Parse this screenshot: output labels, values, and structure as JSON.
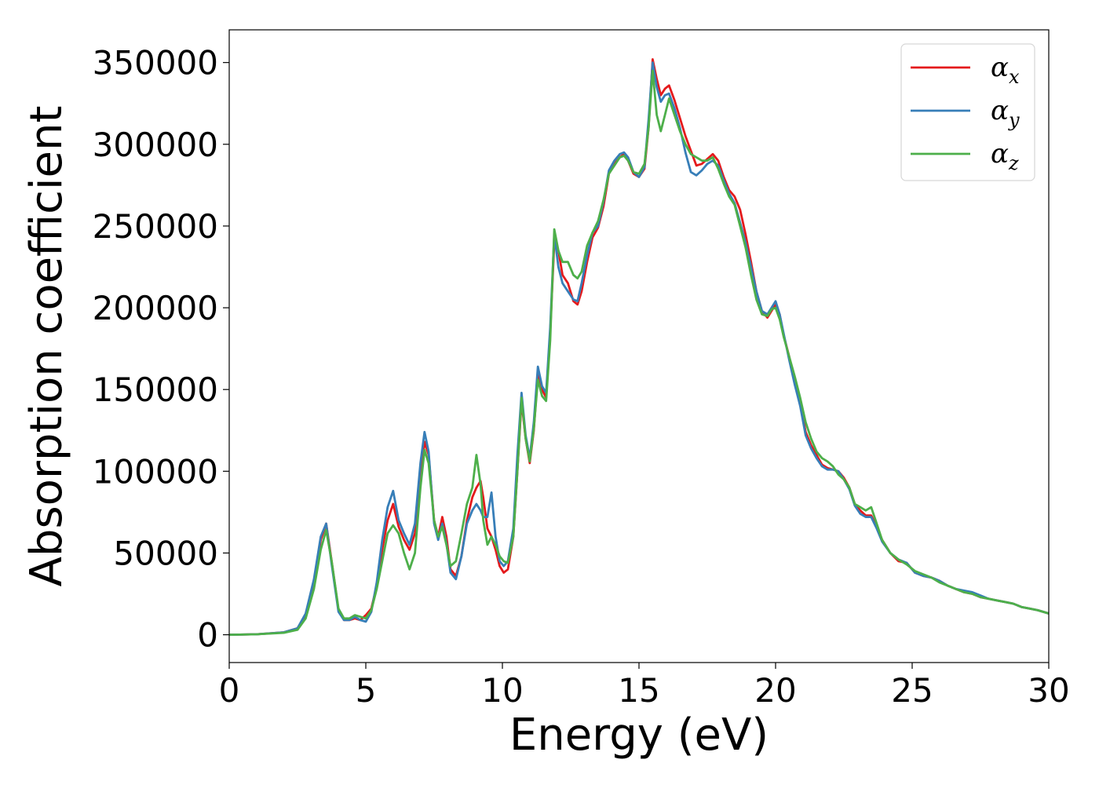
{
  "chart_data": {
    "type": "line",
    "xlabel": "Energy (eV)",
    "ylabel": "Absorption coefficient",
    "xlim": [
      0,
      30
    ],
    "ylim": [
      -17000,
      370000
    ],
    "xticks": [
      0,
      5,
      10,
      15,
      20,
      25,
      30
    ],
    "yticks": [
      0,
      50000,
      100000,
      150000,
      200000,
      250000,
      300000,
      350000
    ],
    "xtick_labels": [
      "0",
      "5",
      "10",
      "15",
      "20",
      "25",
      "30"
    ],
    "ytick_labels": [
      "0",
      "50000",
      "100000",
      "150000",
      "200000",
      "250000",
      "300000",
      "350000"
    ],
    "grid": false,
    "legend_position": "top-right",
    "series": [
      {
        "name": "α_x",
        "label_main": "α",
        "label_sub": "x",
        "color": "#e41a1c",
        "x": [
          0,
          1,
          2,
          2.5,
          2.8,
          3.1,
          3.35,
          3.55,
          3.75,
          4.0,
          4.2,
          4.4,
          4.6,
          4.8,
          5.0,
          5.2,
          5.4,
          5.6,
          5.8,
          6.0,
          6.2,
          6.4,
          6.6,
          6.8,
          7.0,
          7.15,
          7.3,
          7.5,
          7.65,
          7.8,
          7.95,
          8.1,
          8.3,
          8.5,
          8.7,
          8.9,
          9.05,
          9.2,
          9.3,
          9.45,
          9.6,
          9.75,
          9.9,
          10.05,
          10.2,
          10.4,
          10.55,
          10.7,
          10.85,
          11.0,
          11.15,
          11.3,
          11.45,
          11.6,
          11.75,
          11.9,
          12.05,
          12.2,
          12.4,
          12.6,
          12.75,
          12.9,
          13.1,
          13.3,
          13.5,
          13.7,
          13.9,
          14.1,
          14.3,
          14.45,
          14.6,
          14.8,
          15.0,
          15.2,
          15.35,
          15.5,
          15.65,
          15.8,
          15.95,
          16.1,
          16.3,
          16.5,
          16.7,
          16.9,
          17.1,
          17.3,
          17.5,
          17.7,
          17.9,
          18.1,
          18.3,
          18.5,
          18.7,
          18.9,
          19.1,
          19.3,
          19.5,
          19.7,
          19.85,
          20.0,
          20.15,
          20.3,
          20.5,
          20.7,
          20.9,
          21.1,
          21.3,
          21.5,
          21.7,
          21.9,
          22.1,
          22.3,
          22.5,
          22.7,
          22.9,
          23.1,
          23.3,
          23.5,
          23.7,
          23.9,
          24.2,
          24.5,
          24.8,
          25.1,
          25.4,
          25.7,
          26.0,
          26.3,
          26.6,
          26.9,
          27.2,
          27.5,
          27.8,
          28.1,
          28.4,
          28.7,
          29.0,
          29.3,
          29.6,
          30.0
        ],
        "y": [
          0,
          300,
          1500,
          4000,
          12000,
          32000,
          58000,
          68000,
          45000,
          15000,
          9000,
          9000,
          10000,
          9000,
          12000,
          16000,
          30000,
          52000,
          70000,
          80000,
          66000,
          58000,
          52000,
          62000,
          95000,
          118000,
          110000,
          70000,
          60000,
          72000,
          60000,
          40000,
          36000,
          48000,
          70000,
          84000,
          90000,
          94000,
          84000,
          65000,
          60000,
          52000,
          42000,
          38000,
          40000,
          60000,
          100000,
          143000,
          120000,
          105000,
          125000,
          160000,
          150000,
          145000,
          185000,
          240000,
          235000,
          220000,
          215000,
          204000,
          202000,
          210000,
          228000,
          243000,
          249000,
          262000,
          282000,
          288000,
          292000,
          294000,
          290000,
          282000,
          280000,
          285000,
          310000,
          352000,
          340000,
          330000,
          334000,
          336000,
          327000,
          316000,
          305000,
          296000,
          287000,
          288000,
          291000,
          294000,
          290000,
          280000,
          272000,
          268000,
          260000,
          245000,
          228000,
          210000,
          198000,
          194000,
          198000,
          202000,
          196000,
          183000,
          170000,
          155000,
          142000,
          124000,
          116000,
          110000,
          104000,
          102000,
          101000,
          100000,
          96000,
          90000,
          80000,
          76000,
          73000,
          73000,
          66000,
          58000,
          50000,
          45000,
          44000,
          38000,
          36000,
          35000,
          33000,
          30000,
          28000,
          26000,
          25000,
          23000,
          22000,
          21000,
          20000,
          19000,
          17000,
          16000,
          15000,
          13000
        ]
      },
      {
        "name": "α_y",
        "label_main": "α",
        "label_sub": "y",
        "color": "#377eb8",
        "x": [
          0,
          1,
          2,
          2.5,
          2.8,
          3.1,
          3.35,
          3.55,
          3.75,
          4.0,
          4.2,
          4.4,
          4.6,
          4.8,
          5.0,
          5.2,
          5.4,
          5.6,
          5.8,
          6.0,
          6.2,
          6.4,
          6.6,
          6.8,
          7.0,
          7.15,
          7.3,
          7.5,
          7.65,
          7.8,
          7.95,
          8.1,
          8.3,
          8.5,
          8.7,
          8.9,
          9.05,
          9.2,
          9.3,
          9.45,
          9.6,
          9.75,
          9.9,
          10.05,
          10.2,
          10.4,
          10.55,
          10.7,
          10.85,
          11.0,
          11.15,
          11.3,
          11.45,
          11.6,
          11.75,
          11.9,
          12.05,
          12.2,
          12.4,
          12.6,
          12.75,
          12.9,
          13.1,
          13.3,
          13.5,
          13.7,
          13.9,
          14.1,
          14.3,
          14.45,
          14.6,
          14.8,
          15.0,
          15.2,
          15.35,
          15.5,
          15.65,
          15.8,
          15.95,
          16.1,
          16.3,
          16.5,
          16.7,
          16.9,
          17.1,
          17.3,
          17.5,
          17.7,
          17.9,
          18.1,
          18.3,
          18.5,
          18.7,
          18.9,
          19.1,
          19.3,
          19.5,
          19.7,
          19.85,
          20.0,
          20.15,
          20.3,
          20.5,
          20.7,
          20.9,
          21.1,
          21.3,
          21.5,
          21.7,
          21.9,
          22.1,
          22.3,
          22.5,
          22.7,
          22.9,
          23.1,
          23.3,
          23.5,
          23.7,
          23.9,
          24.2,
          24.5,
          24.8,
          25.1,
          25.4,
          25.7,
          26.0,
          26.3,
          26.6,
          26.9,
          27.2,
          27.5,
          27.8,
          28.1,
          28.4,
          28.7,
          29.0,
          29.3,
          29.6,
          30.0
        ],
        "y": [
          0,
          300,
          1500,
          4000,
          13000,
          34000,
          60000,
          68000,
          43000,
          14000,
          9000,
          9000,
          11000,
          9000,
          8000,
          14000,
          32000,
          58000,
          78000,
          88000,
          70000,
          62000,
          55000,
          68000,
          105000,
          124000,
          112000,
          68000,
          58000,
          68000,
          56000,
          38000,
          34000,
          48000,
          68000,
          76000,
          80000,
          76000,
          72000,
          72000,
          87000,
          60000,
          45000,
          42000,
          45000,
          65000,
          110000,
          148000,
          122000,
          108000,
          130000,
          164000,
          152000,
          148000,
          188000,
          245000,
          225000,
          215000,
          210000,
          205000,
          204000,
          215000,
          232000,
          246000,
          250000,
          265000,
          284000,
          290000,
          294000,
          295000,
          292000,
          283000,
          280000,
          286000,
          315000,
          350000,
          335000,
          326000,
          330000,
          331000,
          322000,
          310000,
          295000,
          283000,
          281000,
          284000,
          288000,
          290000,
          287000,
          278000,
          270000,
          264000,
          252000,
          240000,
          225000,
          210000,
          198000,
          196000,
          200000,
          204000,
          196000,
          184000,
          168000,
          153000,
          140000,
          122000,
          114000,
          108000,
          103000,
          101000,
          101000,
          100000,
          95000,
          89000,
          79000,
          74000,
          72000,
          72000,
          65000,
          57000,
          50000,
          46000,
          44000,
          38000,
          36000,
          35000,
          33000,
          30000,
          28000,
          27000,
          26000,
          24000,
          22000,
          21000,
          20000,
          19000,
          17000,
          16000,
          15000,
          13000
        ]
      },
      {
        "name": "α_z",
        "label_main": "α",
        "label_sub": "z",
        "color": "#4daf4a",
        "x": [
          0,
          1,
          2,
          2.5,
          2.8,
          3.1,
          3.35,
          3.55,
          3.75,
          4.0,
          4.2,
          4.4,
          4.6,
          4.8,
          5.0,
          5.2,
          5.4,
          5.6,
          5.8,
          6.0,
          6.2,
          6.4,
          6.6,
          6.8,
          7.0,
          7.15,
          7.3,
          7.5,
          7.65,
          7.8,
          7.95,
          8.1,
          8.3,
          8.5,
          8.7,
          8.9,
          9.05,
          9.2,
          9.3,
          9.45,
          9.6,
          9.75,
          9.9,
          10.05,
          10.2,
          10.4,
          10.55,
          10.7,
          10.85,
          11.0,
          11.15,
          11.3,
          11.45,
          11.6,
          11.75,
          11.9,
          12.05,
          12.2,
          12.4,
          12.6,
          12.75,
          12.9,
          13.1,
          13.3,
          13.5,
          13.7,
          13.9,
          14.1,
          14.3,
          14.45,
          14.6,
          14.8,
          15.0,
          15.2,
          15.35,
          15.5,
          15.65,
          15.8,
          15.95,
          16.1,
          16.3,
          16.5,
          16.7,
          16.9,
          17.1,
          17.3,
          17.5,
          17.7,
          17.9,
          18.1,
          18.3,
          18.5,
          18.7,
          18.9,
          19.1,
          19.3,
          19.5,
          19.7,
          19.85,
          20.0,
          20.15,
          20.3,
          20.5,
          20.7,
          20.9,
          21.1,
          21.3,
          21.5,
          21.7,
          21.9,
          22.1,
          22.3,
          22.5,
          22.7,
          22.9,
          23.1,
          23.3,
          23.5,
          23.7,
          23.9,
          24.2,
          24.5,
          24.8,
          25.1,
          25.4,
          25.7,
          26.0,
          26.3,
          26.6,
          26.9,
          27.2,
          27.5,
          27.8,
          28.1,
          28.4,
          28.7,
          29.0,
          29.3,
          29.6,
          30.0
        ],
        "y": [
          0,
          300,
          1200,
          3000,
          10000,
          28000,
          52000,
          64000,
          45000,
          16000,
          10000,
          10000,
          12000,
          11000,
          10000,
          15000,
          28000,
          45000,
          62000,
          67000,
          62000,
          50000,
          40000,
          50000,
          90000,
          113000,
          105000,
          70000,
          60000,
          66000,
          55000,
          42000,
          45000,
          62000,
          80000,
          90000,
          110000,
          92000,
          70000,
          55000,
          60000,
          55000,
          48000,
          45000,
          44000,
          60000,
          100000,
          145000,
          120000,
          106000,
          126000,
          156000,
          146000,
          143000,
          180000,
          248000,
          235000,
          228000,
          228000,
          220000,
          218000,
          222000,
          238000,
          246000,
          253000,
          266000,
          282000,
          287000,
          292000,
          293000,
          290000,
          283000,
          282000,
          288000,
          310000,
          345000,
          318000,
          308000,
          318000,
          328000,
          318000,
          308000,
          300000,
          294000,
          292000,
          290000,
          290000,
          292000,
          285000,
          276000,
          268000,
          263000,
          250000,
          237000,
          220000,
          205000,
          196000,
          195000,
          199000,
          200000,
          193000,
          182000,
          170000,
          158000,
          145000,
          130000,
          120000,
          112000,
          108000,
          106000,
          103000,
          98000,
          95000,
          90000,
          80000,
          78000,
          76000,
          78000,
          68000,
          58000,
          50000,
          46000,
          43000,
          39000,
          37000,
          35000,
          32000,
          30000,
          28000,
          26000,
          25000,
          23000,
          22000,
          21000,
          20000,
          19000,
          17000,
          16000,
          15000,
          13000
        ]
      }
    ]
  }
}
